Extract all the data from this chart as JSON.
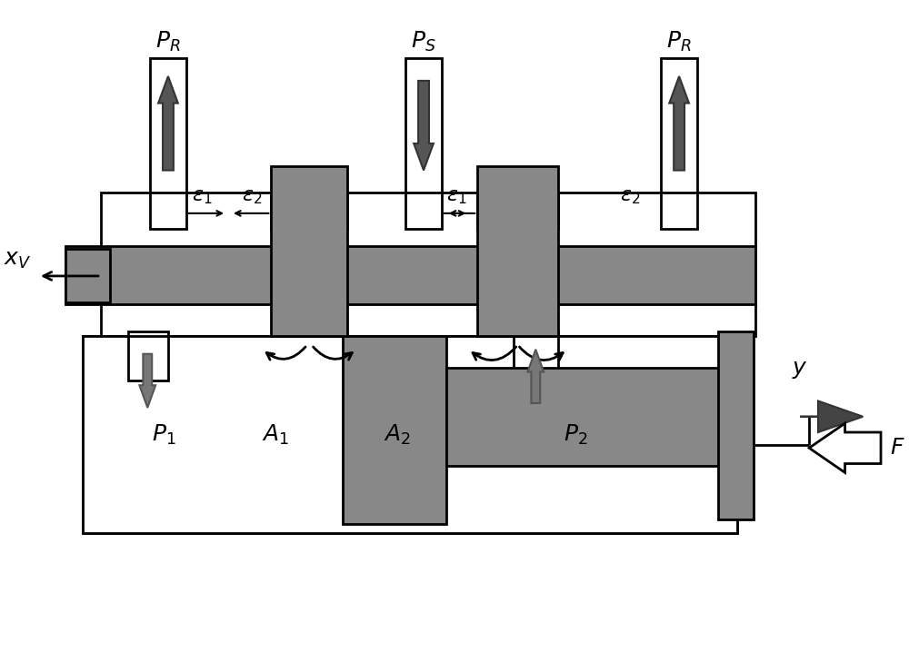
{
  "gray": "#888888",
  "white": "#ffffff",
  "black": "#000000",
  "lw": 2.0,
  "figsize": [
    10.0,
    7.4
  ],
  "dpi": 100
}
